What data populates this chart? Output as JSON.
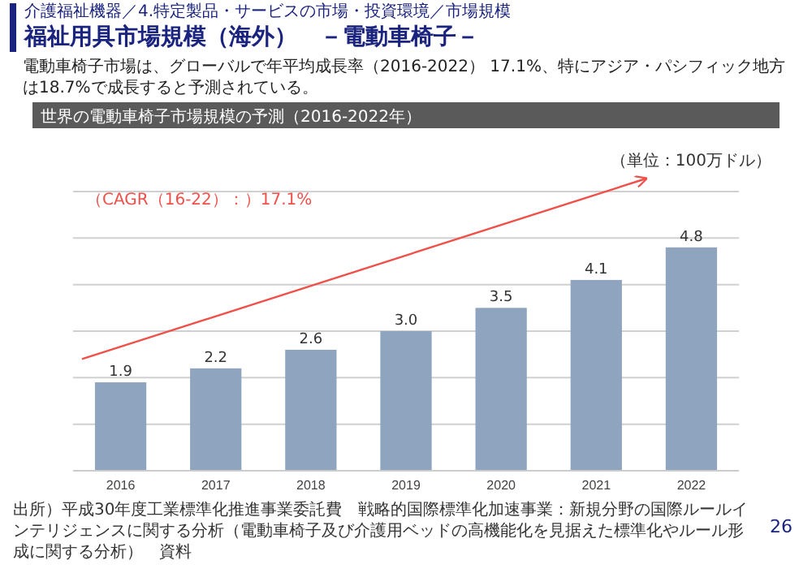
{
  "chart_data": {
    "type": "bar",
    "title": "福祉用具市場規模（海外）　－電動車椅子－",
    "subtitle": "世界の電動車椅子市場規模の予測（2016-2022年）",
    "categories": [
      "2016",
      "2017",
      "2018",
      "2019",
      "2020",
      "2021",
      "2022"
    ],
    "values": [
      1.9,
      2.2,
      2.6,
      3.0,
      3.5,
      4.1,
      4.8
    ],
    "color": "#8fa5bf",
    "value_labels": [
      "1.9",
      "2.2",
      "2.6",
      "3.0",
      "3.5",
      "4.1",
      "4.8"
    ],
    "ylim": [
      0,
      6
    ],
    "yticks": [
      {
        "value": 0,
        "label": null
      },
      {
        "value": 1,
        "label": null
      },
      {
        "value": 2,
        "label": null
      },
      {
        "value": 3,
        "label": null
      },
      {
        "value": 4,
        "label": null
      },
      {
        "value": 5,
        "label": null
      },
      {
        "value": 6,
        "label": null
      }
    ],
    "grid": "y",
    "tick_labels": "x",
    "annotations": [
      "介護福祉機器／4.特定製品・サービスの市場・投資環境／市場規模",
      "電動車椅子市場は、グローバルで年平均成長率（2016-2022） 17.1%、特にアジア・パシフィック地方は18.7%で成長すると予測されている。",
      "（単位：100万ドル）",
      "（CAGR（16-22）：）17.1%",
      "出所）平成30年度工業標準化推進事業委託費　戦略的国際標準化加速事業：新規分野の国際ルールインテリジェンスに関する分析（電動車椅子及び介護用ベッドの高機能化を見据えた標準化やルール形成に関する分析）　資料",
      "26"
    ]
  }
}
